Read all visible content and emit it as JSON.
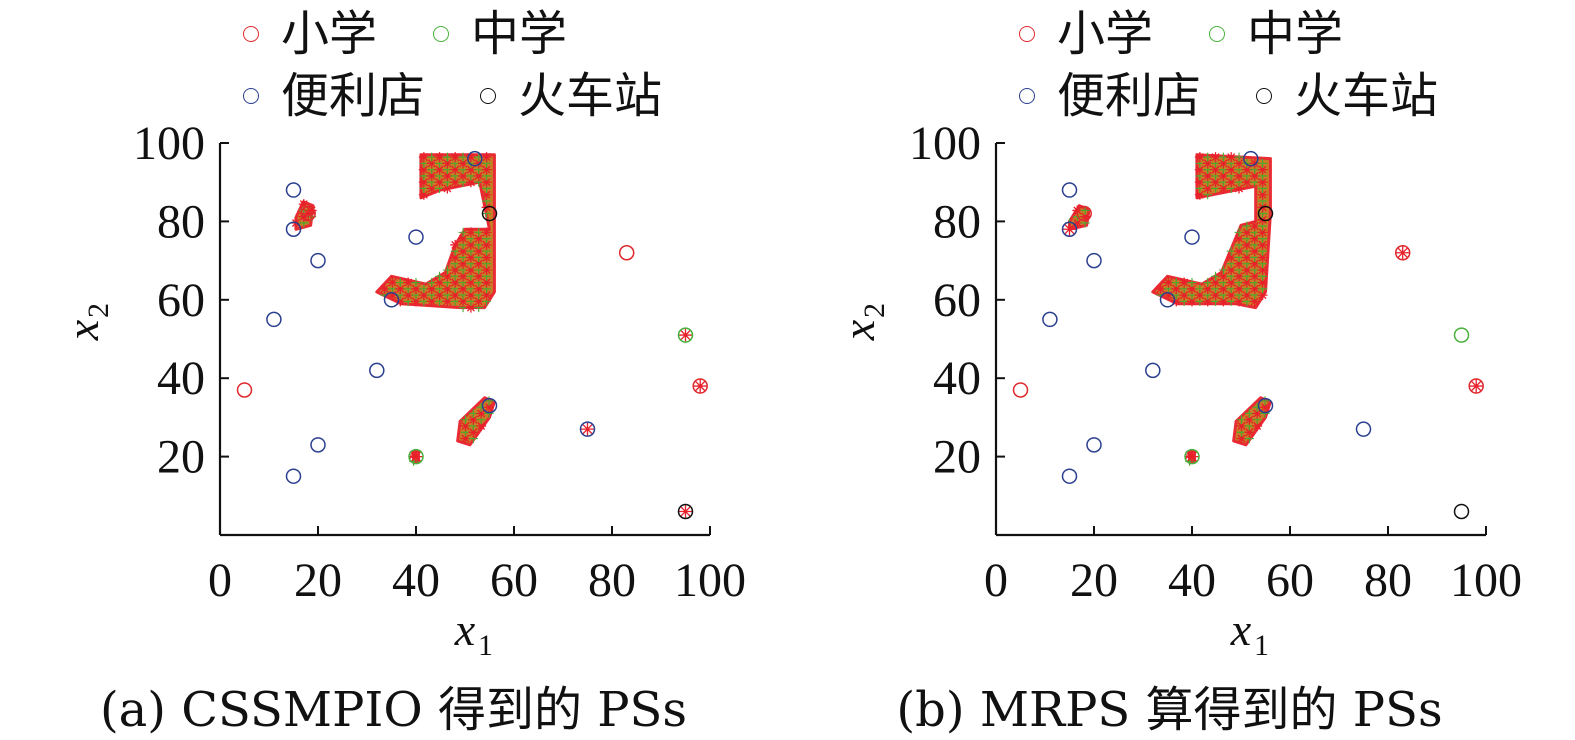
{
  "colors": {
    "primary_school": "#e0282c",
    "middle_school": "#46b03a",
    "convenience_store": "#2b3f8f",
    "train_station": "#111111",
    "ps_fill": "#c5781a",
    "ps_star": "#e8202a",
    "ps_plus": "#4aa830",
    "axis": "#111111"
  },
  "chart_data": [
    {
      "id": "a",
      "type": "scatter",
      "caption": "(a) CSSMPIO 得到的 PSs",
      "xlabel": "x",
      "xlabel_sub": "1",
      "ylabel": "x",
      "ylabel_sub": "2",
      "xlim": [
        0,
        100
      ],
      "ylim": [
        0,
        100
      ],
      "xticks": [
        "0",
        "20",
        "40",
        "60",
        "80",
        "100"
      ],
      "yticks": [
        "20",
        "40",
        "60",
        "80",
        "100"
      ],
      "legend": [
        {
          "label": "小学",
          "key": "primary_school"
        },
        {
          "label": "中学",
          "key": "middle_school"
        },
        {
          "label": "便利店",
          "key": "convenience_store"
        },
        {
          "label": "火车站",
          "key": "train_station"
        }
      ],
      "facilities": {
        "primary_school": [
          [
            5,
            37
          ],
          [
            18,
            82
          ],
          [
            83,
            72
          ],
          [
            98,
            38
          ]
        ],
        "middle_school": [
          [
            40,
            20
          ],
          [
            95,
            51
          ]
        ],
        "convenience_store": [
          [
            15,
            88
          ],
          [
            15,
            78
          ],
          [
            20,
            70
          ],
          [
            11,
            55
          ],
          [
            32,
            42
          ],
          [
            20,
            23
          ],
          [
            15,
            15
          ],
          [
            35,
            60
          ],
          [
            40,
            76
          ],
          [
            52,
            96
          ],
          [
            55,
            33
          ],
          [
            75,
            27
          ]
        ],
        "train_station": [
          [
            55,
            82
          ],
          [
            95,
            6
          ]
        ]
      },
      "ps_regions": [
        {
          "name": "upper-left",
          "points": [
            [
              15.5,
              78
            ],
            [
              18.5,
              79
            ],
            [
              19,
              84
            ],
            [
              17,
              85
            ],
            [
              15.5,
              81
            ]
          ]
        },
        {
          "name": "center-J",
          "points": [
            [
              41,
              97
            ],
            [
              56,
              97
            ],
            [
              56,
              82
            ],
            [
              56,
              62
            ],
            [
              54,
              58
            ],
            [
              49,
              58
            ],
            [
              37,
              59
            ],
            [
              32,
              62
            ],
            [
              35,
              66
            ],
            [
              42,
              64
            ],
            [
              46,
              67
            ],
            [
              48,
              74
            ],
            [
              50,
              78
            ],
            [
              55,
              78
            ],
            [
              53,
              90
            ],
            [
              45,
              88
            ],
            [
              41,
              86
            ]
          ]
        },
        {
          "name": "lower-middle",
          "points": [
            [
              48.5,
              24
            ],
            [
              51,
              23
            ],
            [
              55,
              30
            ],
            [
              56,
              34
            ],
            [
              54,
              35
            ],
            [
              49,
              29
            ]
          ]
        },
        {
          "name": "sw",
          "points": [
            [
              39.5,
              18.8
            ],
            [
              40.5,
              18.8
            ],
            [
              40.5,
              21.2
            ],
            [
              39.5,
              21.2
            ]
          ]
        }
      ],
      "ps_singletons": [
        [
          18,
          82
        ],
        [
          95,
          51
        ],
        [
          98,
          38
        ],
        [
          75,
          27
        ],
        [
          95,
          6
        ],
        [
          40,
          20
        ]
      ]
    },
    {
      "id": "b",
      "type": "scatter",
      "caption": "(b) MRPS 算得到的 PSs",
      "xlabel": "x",
      "xlabel_sub": "1",
      "ylabel": "x",
      "ylabel_sub": "2",
      "xlim": [
        0,
        100
      ],
      "ylim": [
        0,
        100
      ],
      "xticks": [
        "0",
        "20",
        "40",
        "60",
        "80",
        "100"
      ],
      "yticks": [
        "20",
        "40",
        "60",
        "80",
        "100"
      ],
      "legend": [
        {
          "label": "小学",
          "key": "primary_school"
        },
        {
          "label": "中学",
          "key": "middle_school"
        },
        {
          "label": "便利店",
          "key": "convenience_store"
        },
        {
          "label": "火车站",
          "key": "train_station"
        }
      ],
      "facilities": {
        "primary_school": [
          [
            5,
            37
          ],
          [
            18,
            82
          ],
          [
            83,
            72
          ],
          [
            98,
            38
          ]
        ],
        "middle_school": [
          [
            40,
            20
          ],
          [
            95,
            51
          ]
        ],
        "convenience_store": [
          [
            15,
            88
          ],
          [
            15,
            78
          ],
          [
            20,
            70
          ],
          [
            11,
            55
          ],
          [
            32,
            42
          ],
          [
            20,
            23
          ],
          [
            15,
            15
          ],
          [
            35,
            60
          ],
          [
            40,
            76
          ],
          [
            52,
            96
          ],
          [
            55,
            33
          ],
          [
            75,
            27
          ]
        ],
        "train_station": [
          [
            55,
            82
          ],
          [
            95,
            6
          ]
        ]
      },
      "ps_regions": [
        {
          "name": "upper-left",
          "points": [
            [
              15,
              78
            ],
            [
              18.5,
              79
            ],
            [
              19,
              83
            ],
            [
              17,
              84
            ],
            [
              15,
              80
            ]
          ]
        },
        {
          "name": "center-J",
          "points": [
            [
              41,
              97
            ],
            [
              56,
              96
            ],
            [
              56,
              82
            ],
            [
              55,
              62
            ],
            [
              53,
              58
            ],
            [
              49,
              59
            ],
            [
              37,
              59
            ],
            [
              32,
              62
            ],
            [
              35,
              66
            ],
            [
              42,
              64
            ],
            [
              46,
              67
            ],
            [
              48,
              73
            ],
            [
              50,
              79
            ],
            [
              53,
              80
            ],
            [
              53,
              89
            ],
            [
              45,
              87
            ],
            [
              41,
              86
            ]
          ]
        },
        {
          "name": "lower-middle",
          "points": [
            [
              48.5,
              24
            ],
            [
              51,
              23
            ],
            [
              55,
              30
            ],
            [
              56,
              34
            ],
            [
              54,
              35
            ],
            [
              49,
              29
            ]
          ]
        },
        {
          "name": "sw",
          "points": [
            [
              39.5,
              18.8
            ],
            [
              40.5,
              18.8
            ],
            [
              40.5,
              21.2
            ],
            [
              39.5,
              21.2
            ]
          ]
        }
      ],
      "ps_singletons": [
        [
          15,
          78
        ],
        [
          83,
          72
        ],
        [
          98,
          38
        ],
        [
          40,
          20
        ]
      ]
    }
  ]
}
